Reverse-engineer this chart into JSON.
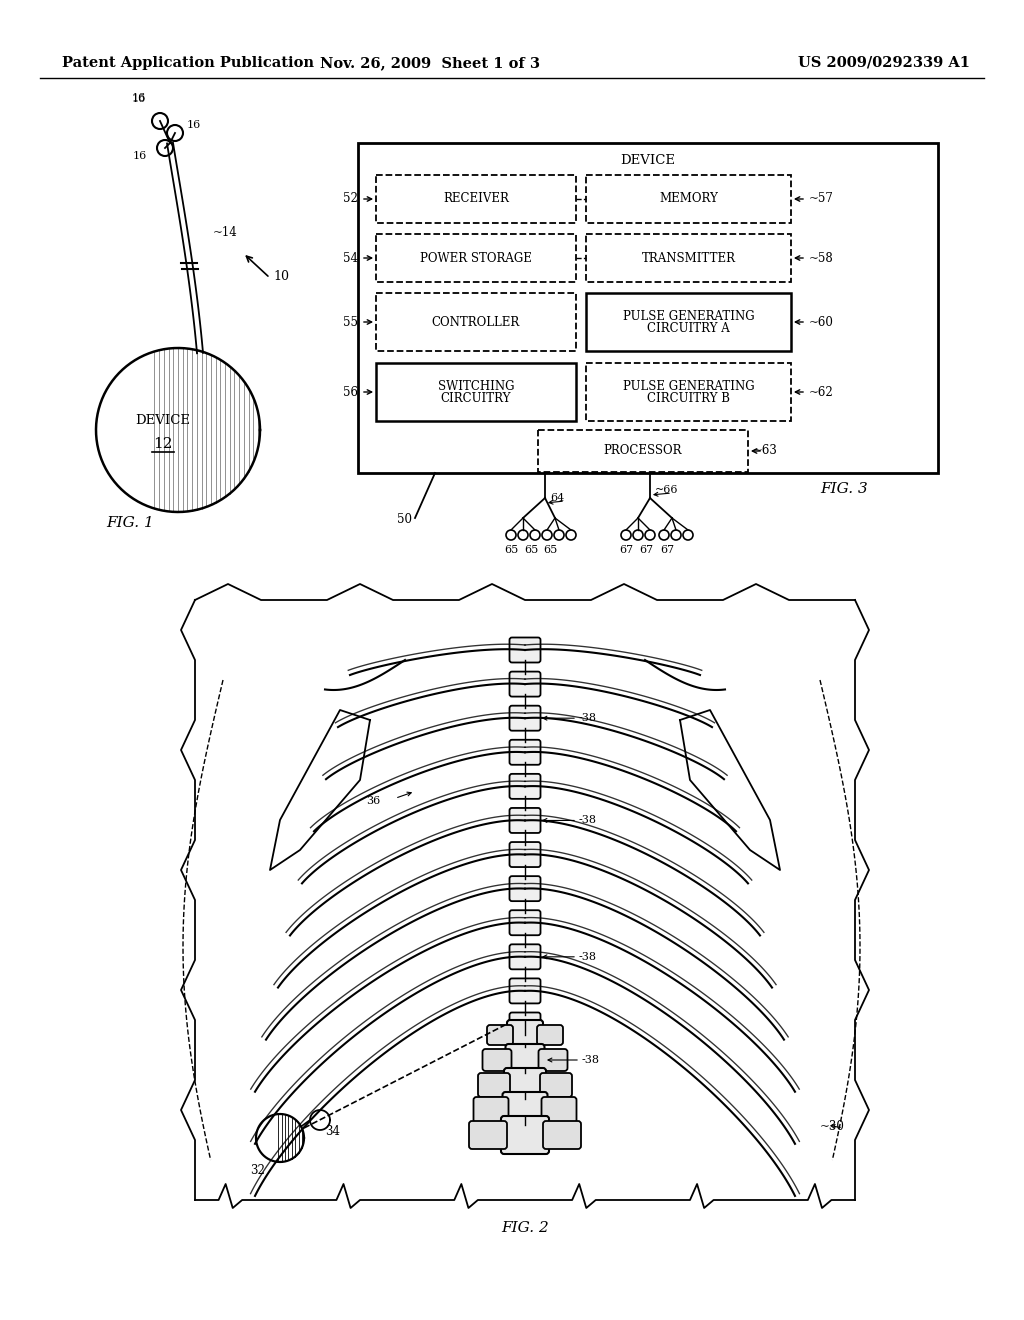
{
  "header_left": "Patent Application Publication",
  "header_mid": "Nov. 26, 2009  Sheet 1 of 3",
  "header_right": "US 2009/0292339 A1",
  "bg_color": "#ffffff",
  "line_color": "#000000"
}
